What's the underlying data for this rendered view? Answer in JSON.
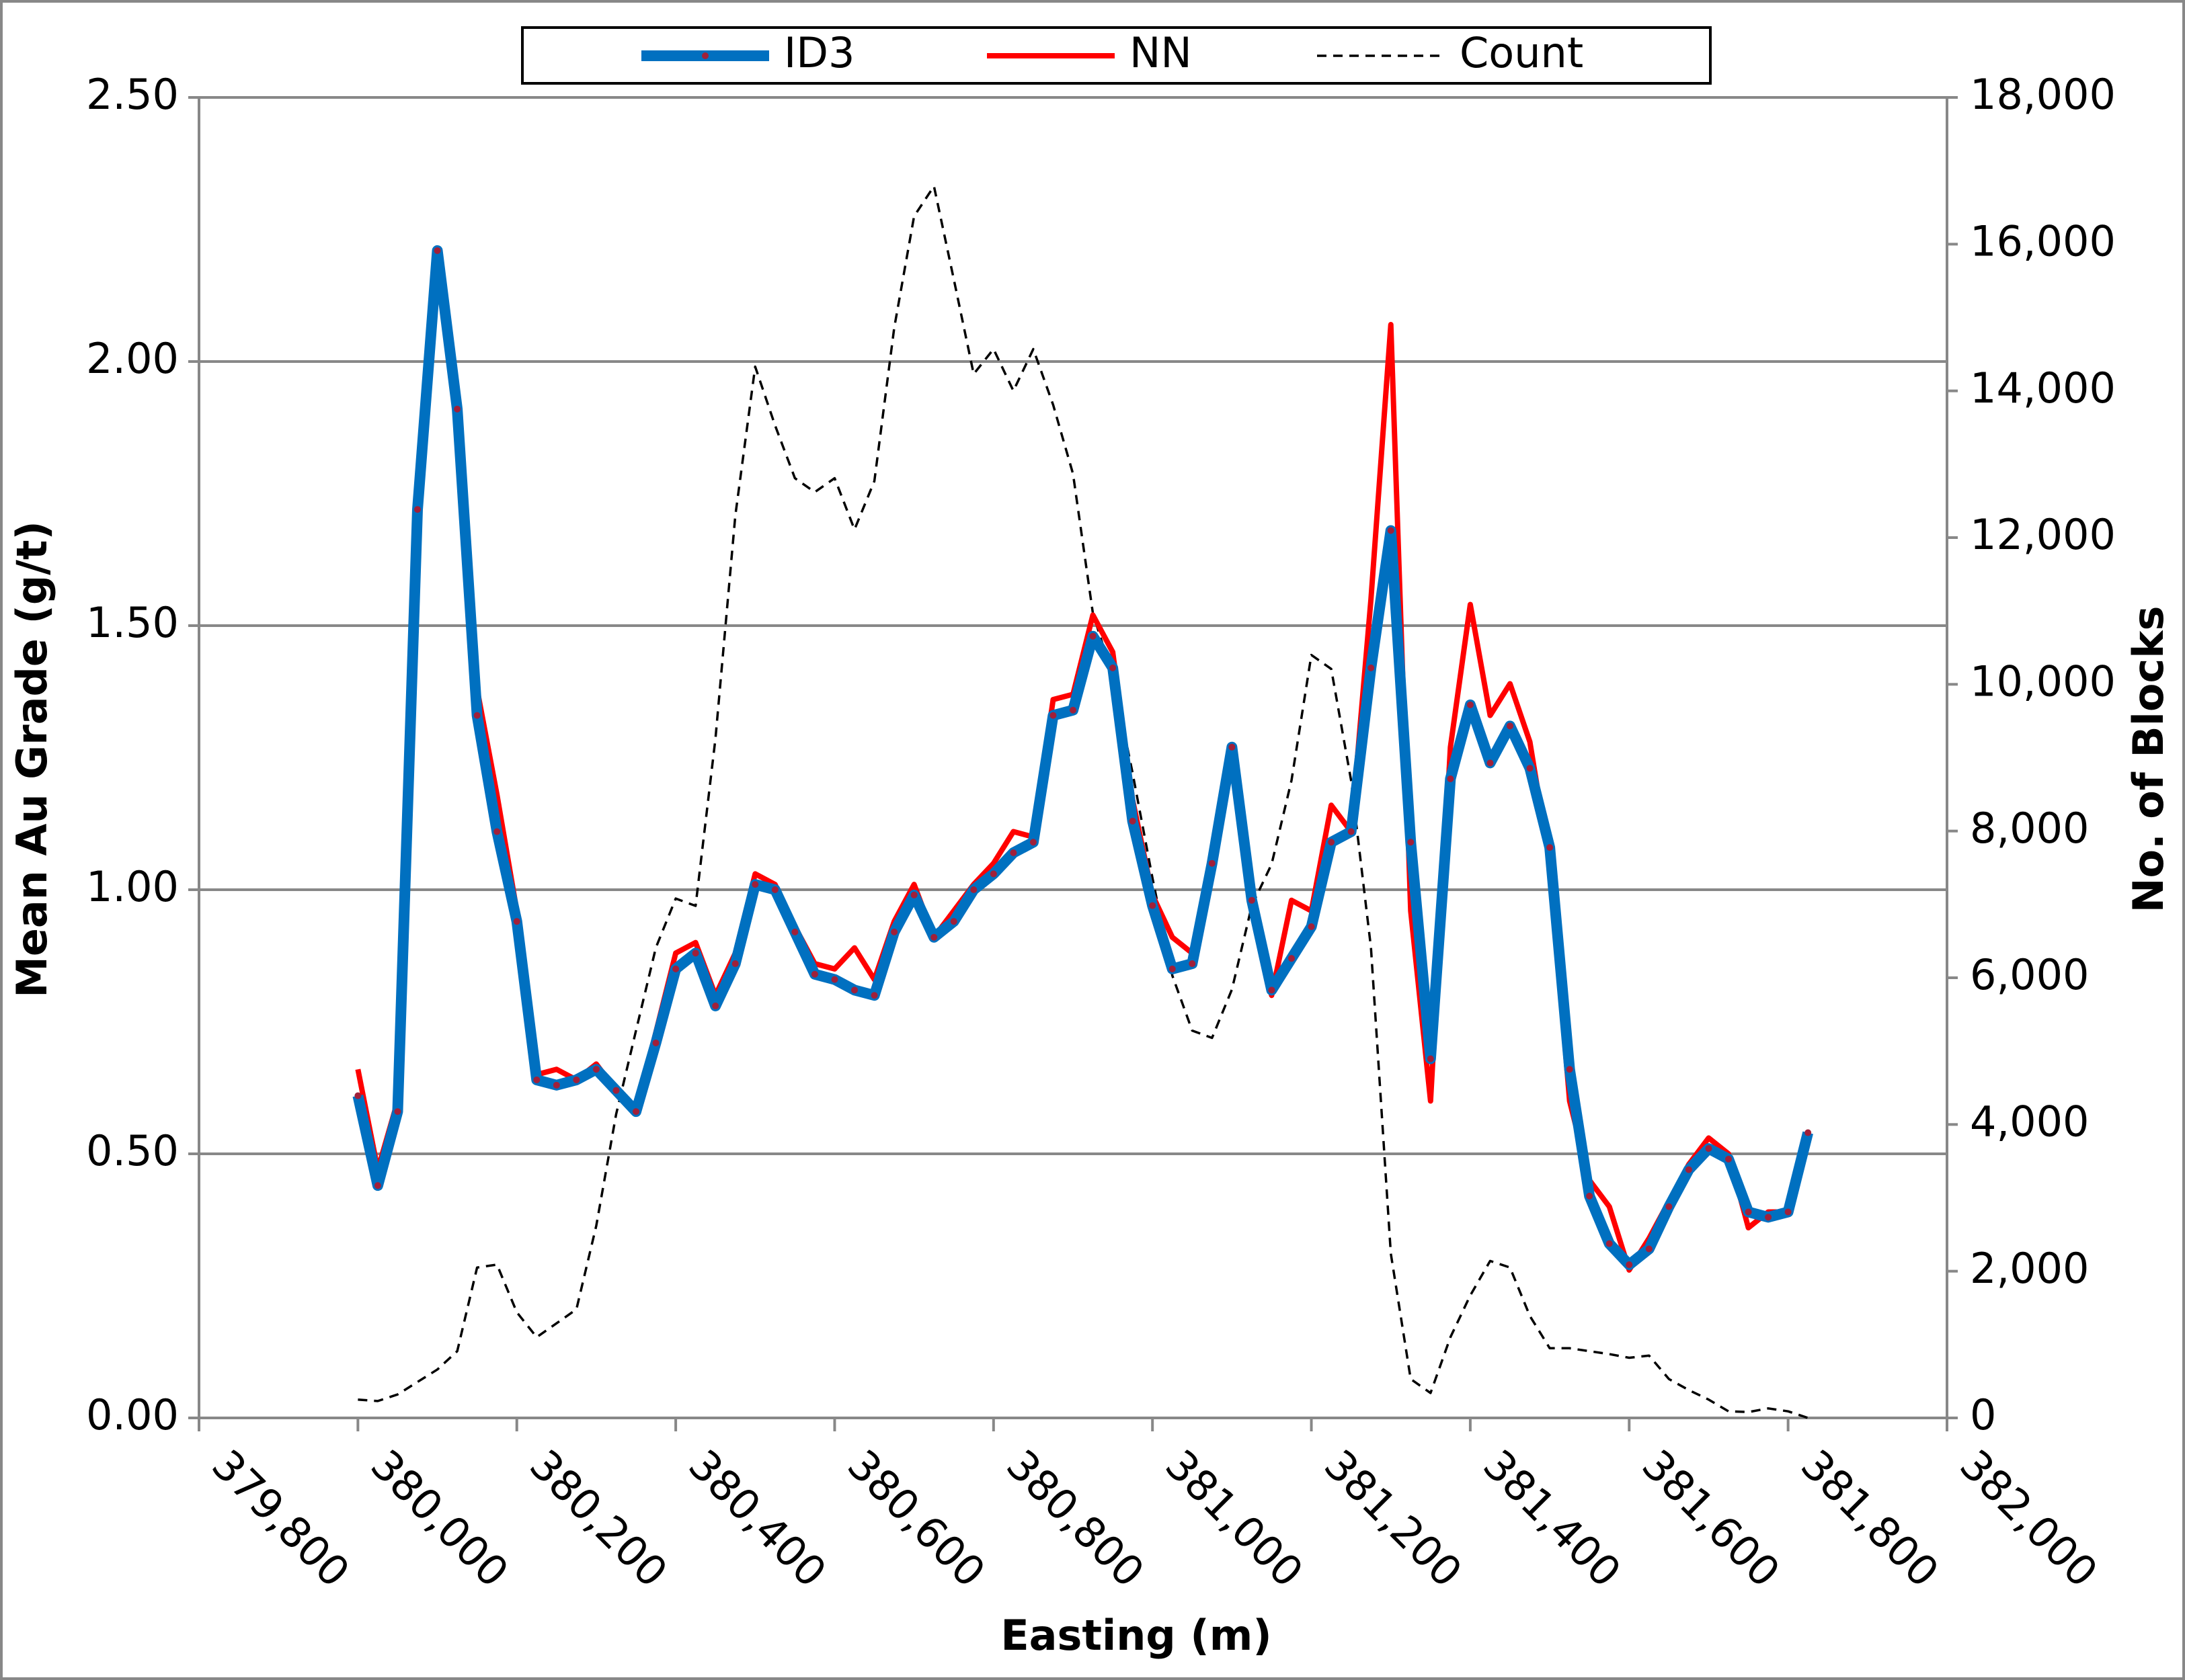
{
  "chart_data": {
    "type": "line",
    "x_label": "Easting (m)",
    "y_label": "Mean Au Grade (g/t)",
    "y2_label": "No. of Blocks",
    "x": [
      380000,
      380025,
      380050,
      380075,
      380100,
      380125,
      380150,
      380175,
      380200,
      380225,
      380250,
      380275,
      380300,
      380325,
      380350,
      380375,
      380400,
      380425,
      380450,
      380475,
      380500,
      380525,
      380550,
      380575,
      380600,
      380625,
      380650,
      380675,
      380700,
      380725,
      380750,
      380775,
      380800,
      380825,
      380850,
      380875,
      380900,
      380925,
      380950,
      380975,
      381000,
      381025,
      381050,
      381075,
      381100,
      381125,
      381150,
      381175,
      381200,
      381225,
      381250,
      381275,
      381300,
      381325,
      381350,
      381375,
      381400,
      381425,
      381450,
      381475,
      381500,
      381525,
      381550,
      381575,
      381600,
      381625,
      381650,
      381675,
      381700,
      381725,
      381750,
      381775,
      381800,
      381825
    ],
    "series": [
      {
        "name": "ID3",
        "color": "#0070c0",
        "line_width": 16,
        "markers": true,
        "marker_color": "#a0203a",
        "values": [
          0.61,
          0.44,
          0.58,
          1.72,
          2.21,
          1.91,
          1.33,
          1.11,
          0.94,
          0.64,
          0.63,
          0.64,
          0.66,
          0.62,
          0.58,
          0.71,
          0.85,
          0.88,
          0.78,
          0.86,
          1.01,
          1.0,
          0.92,
          0.84,
          0.83,
          0.81,
          0.8,
          0.92,
          0.99,
          0.91,
          0.94,
          1.0,
          1.03,
          1.07,
          1.09,
          1.33,
          1.34,
          1.48,
          1.42,
          1.13,
          0.97,
          0.85,
          0.86,
          1.05,
          1.27,
          0.98,
          0.81,
          0.87,
          0.93,
          1.09,
          1.11,
          1.42,
          1.68,
          1.09,
          0.68,
          1.21,
          1.35,
          1.24,
          1.31,
          1.23,
          1.08,
          0.66,
          0.42,
          0.33,
          0.29,
          0.32,
          0.4,
          0.47,
          0.51,
          0.49,
          0.39,
          0.38,
          0.39,
          0.54
        ]
      },
      {
        "name": "NN",
        "color": "#ff0000",
        "line_width": 8,
        "values": [
          0.66,
          0.47,
          0.6,
          1.74,
          2.19,
          1.89,
          1.38,
          1.18,
          0.96,
          0.65,
          0.66,
          0.64,
          0.67,
          0.62,
          0.58,
          0.73,
          0.88,
          0.9,
          0.8,
          0.88,
          1.03,
          1.01,
          0.93,
          0.86,
          0.85,
          0.89,
          0.83,
          0.94,
          1.01,
          0.91,
          0.96,
          1.01,
          1.05,
          1.11,
          1.1,
          1.36,
          1.37,
          1.52,
          1.45,
          1.17,
          0.99,
          0.91,
          0.88,
          1.07,
          1.26,
          0.96,
          0.8,
          0.98,
          0.96,
          1.16,
          1.11,
          1.55,
          2.07,
          0.96,
          0.6,
          1.27,
          1.54,
          1.33,
          1.39,
          1.28,
          1.05,
          0.6,
          0.45,
          0.4,
          0.28,
          0.34,
          0.41,
          0.48,
          0.53,
          0.5,
          0.36,
          0.39,
          0.39,
          0.54
        ]
      },
      {
        "name": "Count",
        "color": "#000000",
        "line_width": 3.5,
        "dashed": true,
        "axis": "y2",
        "values": [
          250,
          230,
          320,
          490,
          660,
          910,
          2050,
          2090,
          1440,
          1100,
          1290,
          1480,
          2620,
          4140,
          5280,
          6410,
          7080,
          6980,
          9260,
          12300,
          14330,
          13530,
          12810,
          12620,
          12810,
          12110,
          12770,
          14860,
          16380,
          16790,
          15520,
          14230,
          14570,
          14000,
          14570,
          13810,
          12870,
          10970,
          10110,
          8790,
          7360,
          6030,
          5280,
          5180,
          5840,
          6980,
          7550,
          8690,
          10400,
          10210,
          8690,
          6410,
          2240,
          530,
          340,
          1100,
          1670,
          2140,
          2050,
          1390,
          950,
          950,
          910,
          870,
          820,
          850,
          530,
          380,
          250,
          90,
          80,
          130,
          90,
          0
        ]
      }
    ],
    "xlim": [
      379800,
      382000
    ],
    "xticks": [
      {
        "value": 379800,
        "label": "379,800"
      },
      {
        "value": 380000,
        "label": "380,000"
      },
      {
        "value": 380200,
        "label": "380,200"
      },
      {
        "value": 380400,
        "label": "380,400"
      },
      {
        "value": 380600,
        "label": "380,600"
      },
      {
        "value": 380800,
        "label": "380,800"
      },
      {
        "value": 381000,
        "label": "381,000"
      },
      {
        "value": 381200,
        "label": "381,200"
      },
      {
        "value": 381400,
        "label": "381,400"
      },
      {
        "value": 381600,
        "label": "381,600"
      },
      {
        "value": 381800,
        "label": "381,800"
      },
      {
        "value": 382000,
        "label": "382,000"
      }
    ],
    "ylim": [
      0,
      2.5
    ],
    "yticks": [
      {
        "value": 0,
        "label": "0.00"
      },
      {
        "value": 0.5,
        "label": "0.50"
      },
      {
        "value": 1,
        "label": "1.00"
      },
      {
        "value": 1.5,
        "label": "1.50"
      },
      {
        "value": 2,
        "label": "2.00"
      },
      {
        "value": 2.5,
        "label": "2.50"
      }
    ],
    "y2lim": [
      0,
      18000
    ],
    "y2ticks": [
      0,
      {
        "value": 2000,
        "label": "2,000"
      },
      {
        "value": 4000,
        "label": "4,000"
      },
      {
        "value": 6000,
        "label": "6,000"
      },
      {
        "value": 8000,
        "label": "8,000"
      },
      {
        "value": 10000,
        "label": "10,000"
      },
      {
        "value": 12000,
        "label": "12,000"
      },
      {
        "value": 14000,
        "label": "14,000"
      },
      {
        "value": 16000,
        "label": "16,000"
      },
      {
        "value": 18000,
        "label": "18,000"
      }
    ],
    "grid": true,
    "legend": "top"
  }
}
